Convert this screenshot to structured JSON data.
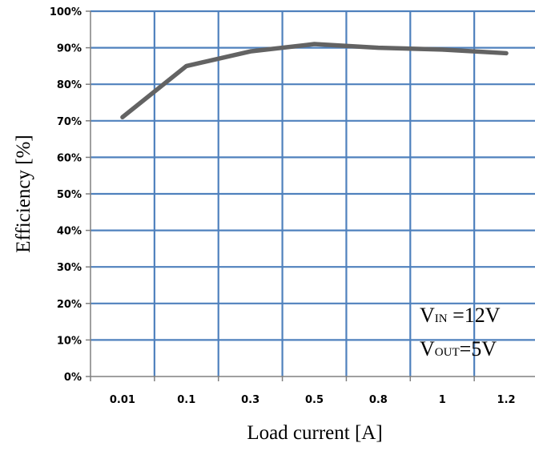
{
  "chart_data": {
    "type": "line",
    "title": "",
    "categories": [
      "0.01",
      "0.1",
      "0.3",
      "0.5",
      "0.8",
      "1",
      "1.2"
    ],
    "series": [
      {
        "values": [
          71,
          85,
          89,
          91,
          90,
          89.5,
          88.5
        ]
      }
    ],
    "ylabel": "Efficiency [%]",
    "xlabel": "Load current [A]",
    "ylim": [
      0,
      100
    ],
    "yticks": [
      "0%",
      "10%",
      "20%",
      "30%",
      "40%",
      "50%",
      "60%",
      "70%",
      "80%",
      "90%",
      "100%"
    ],
    "grid": true,
    "colors": {
      "grid": "#4f81bd",
      "line": "#636363",
      "axis": "#808080"
    },
    "annotations": {
      "vin": {
        "main": "V",
        "sub": "IN",
        "value": " =12V"
      },
      "vout": {
        "main": "V",
        "sub": "OUT",
        "value": "=5V"
      }
    }
  }
}
